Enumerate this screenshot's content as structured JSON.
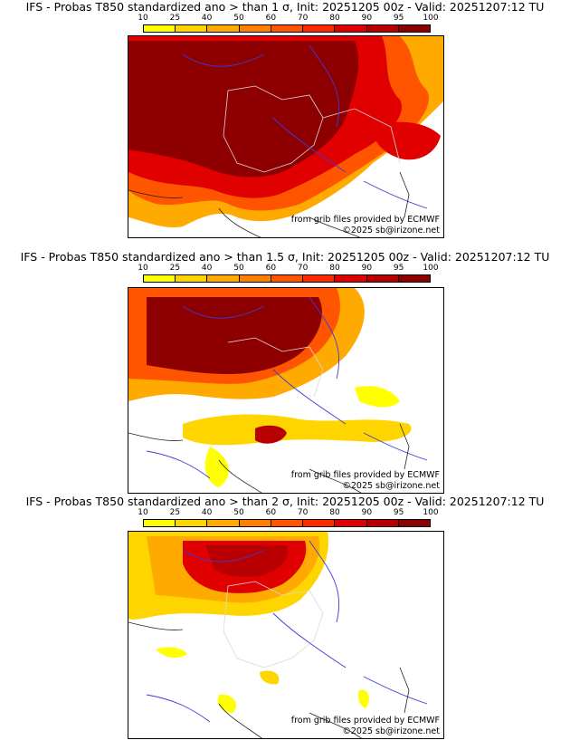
{
  "colorbar": {
    "ticks": [
      "10",
      "25",
      "40",
      "50",
      "60",
      "70",
      "80",
      "90",
      "95",
      "100"
    ],
    "colors": [
      "#ffff00",
      "#ffd500",
      "#ffaa00",
      "#ff8000",
      "#ff5500",
      "#ff2a00",
      "#e00000",
      "#b80000",
      "#8e0000"
    ]
  },
  "panels": [
    {
      "title": "IFS - Probas T850  standardized ano > than 1 σ, Init: 20251205 00z - Valid: 20251207:12 TU",
      "credit_source": "from grib files provided by ECMWF",
      "credit_copyright": "©2025 sb@irizone.net"
    },
    {
      "title": "IFS - Probas T850  standardized ano > than 1.5 σ, Init: 20251205 00z - Valid: 20251207:12 TU",
      "credit_source": "from grib files provided by ECMWF",
      "credit_copyright": "©2025 sb@irizone.net"
    },
    {
      "title": "IFS - Probas T850  standardized ano > than 2 σ, Init: 20251205 00z - Valid: 20251207:12 TU",
      "credit_source": "from grib files provided by ECMWF",
      "credit_copyright": "©2025 sb@irizone.net"
    }
  ]
}
